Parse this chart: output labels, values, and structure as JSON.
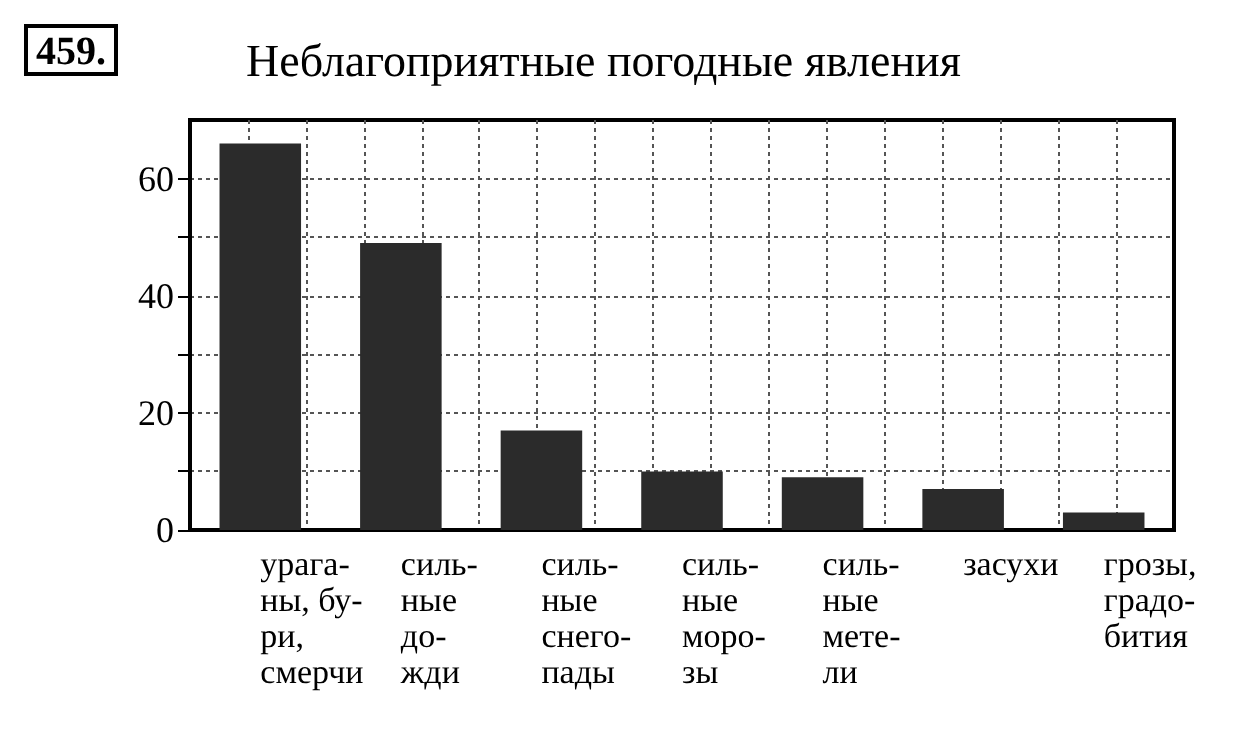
{
  "chart_data": {
    "type": "bar",
    "title": "Неблагоприятные погодные явления",
    "annotations": [
      "459."
    ],
    "categories": [
      "урага-\nны, бу-\nри,\nсмерчи",
      "силь-\nные\nдо-\nжди",
      "силь-\nные\nснего-\nпады",
      "силь-\nные\nморо-\nзы",
      "силь-\nные\nмете-\nли",
      "засухи",
      "грозы,\nградо-\nбития"
    ],
    "values": [
      66,
      49,
      17,
      10,
      9,
      7,
      3
    ],
    "color": "#2b2b2b",
    "ylim": [
      0,
      70
    ],
    "yticks": [
      0,
      {
        "value": 10,
        "label": null
      },
      20,
      {
        "value": 30,
        "label": null
      },
      40,
      {
        "value": 50,
        "label": null
      },
      60
    ],
    "grid": true
  }
}
